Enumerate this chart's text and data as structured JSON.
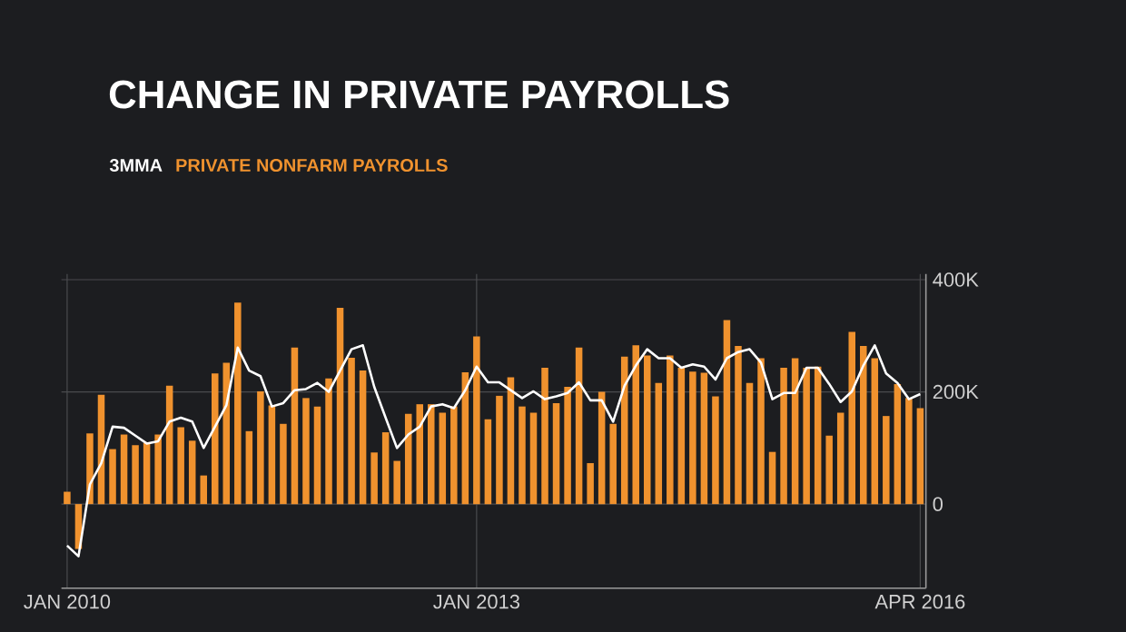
{
  "chart_data": {
    "type": "bar",
    "title": "CHANGE IN PRIVATE PAYROLLS",
    "categories": [
      "JAN 2010",
      null,
      null,
      null,
      null,
      null,
      null,
      null,
      null,
      null,
      null,
      null,
      null,
      null,
      null,
      null,
      null,
      null,
      null,
      null,
      null,
      null,
      null,
      null,
      null,
      null,
      null,
      null,
      null,
      null,
      null,
      null,
      null,
      null,
      null,
      null,
      "JAN 2013",
      null,
      null,
      null,
      null,
      null,
      null,
      null,
      null,
      null,
      null,
      null,
      null,
      null,
      null,
      null,
      null,
      null,
      null,
      null,
      null,
      null,
      null,
      null,
      null,
      null,
      null,
      null,
      null,
      null,
      null,
      null,
      null,
      null,
      null,
      null,
      null,
      null,
      null,
      "APR 2016"
    ],
    "series": [
      {
        "name": "3MMA",
        "type": "line",
        "color": "#ffffff",
        "values": [
          -74,
          -93,
          35,
          73,
          138,
          136,
          122,
          108,
          112,
          147,
          154,
          147,
          100,
          138,
          176,
          279,
          238,
          228,
          174,
          180,
          203,
          205,
          216,
          200,
          238,
          276,
          283,
          209,
          154,
          100,
          124,
          138,
          174,
          178,
          171,
          203,
          245,
          217,
          217,
          203,
          189,
          201,
          187,
          192,
          198,
          217,
          185,
          185,
          147,
          211,
          247,
          276,
          260,
          260,
          243,
          249,
          245,
          222,
          260,
          271,
          276,
          252,
          187,
          198,
          198,
          243,
          243,
          214,
          182,
          201,
          247,
          283,
          233,
          216,
          187,
          196
        ]
      },
      {
        "name": "PRIVATE NONFARM PAYROLLS",
        "color": "#f0922e",
        "values": [
          22,
          -80,
          126,
          195,
          98,
          124,
          105,
          109,
          124,
          211,
          137,
          113,
          51,
          233,
          252,
          359,
          130,
          201,
          176,
          143,
          279,
          189,
          174,
          224,
          350,
          261,
          238,
          92,
          128,
          77,
          161,
          178,
          178,
          163,
          174,
          235,
          299,
          151,
          193,
          226,
          174,
          163,
          243,
          180,
          209,
          279,
          73,
          200,
          143,
          263,
          283,
          265,
          216,
          265,
          243,
          236,
          234,
          192,
          328,
          282,
          216,
          260,
          93,
          243,
          260,
          243,
          245,
          122,
          163,
          307,
          282,
          260,
          157,
          214,
          189,
          171
        ]
      }
    ],
    "ylim": [
      -150,
      410
    ],
    "yticks": [
      0,
      {
        "value": 200,
        "label": "200K"
      },
      {
        "value": 400,
        "label": "400K"
      }
    ],
    "grid": true,
    "legend": "top left"
  }
}
